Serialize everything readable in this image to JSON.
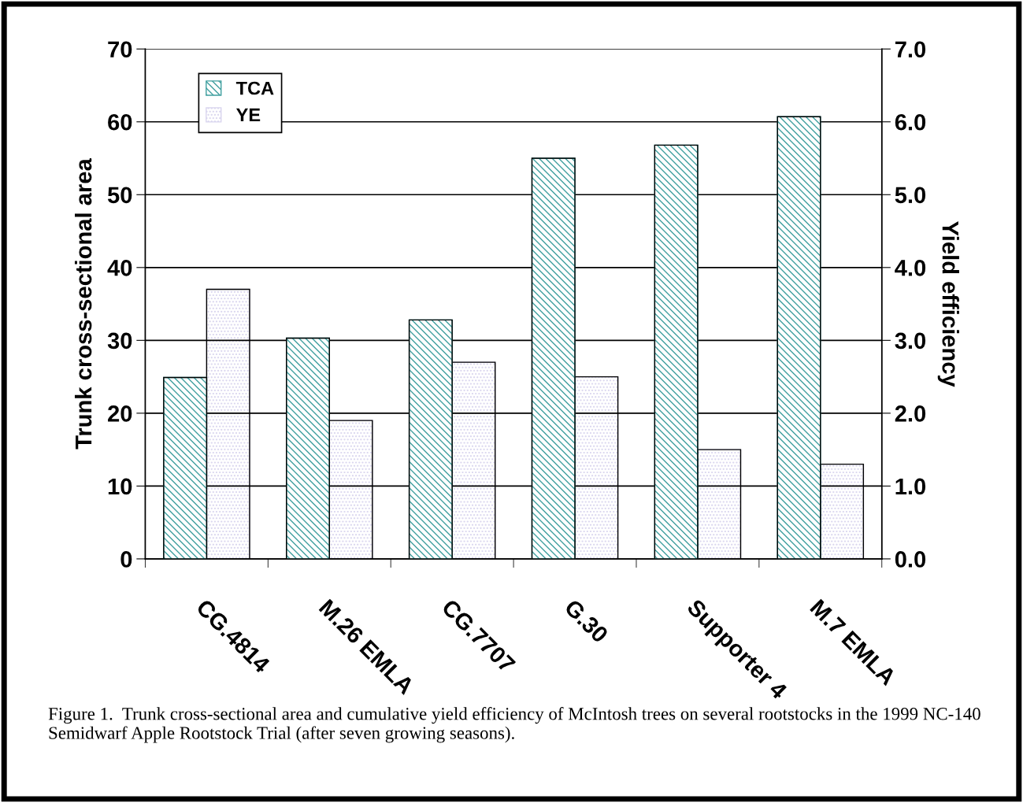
{
  "chart_data": {
    "type": "bar",
    "categories": [
      "CG.4814",
      "M.26 EMLA",
      "CG.7707",
      "G.30",
      "Supporter 4",
      "M.7 EMLA"
    ],
    "series": [
      {
        "name": "TCA",
        "color": "#3f9f9f",
        "values": [
          24.9,
          30.3,
          32.8,
          55.0,
          56.8,
          60.7
        ]
      },
      {
        "name": "YE",
        "color": "#d8d4ee",
        "axis": "y2",
        "values": [
          3.7,
          1.9,
          2.7,
          2.5,
          1.5,
          1.3
        ]
      }
    ],
    "ylabel": "Trunk cross-sectional area",
    "y2label": "Yield efficiency",
    "ylim": [
      0,
      70
    ],
    "yticks": [
      0,
      10,
      20,
      30,
      40,
      50,
      60,
      70
    ],
    "y2lim": [
      0,
      7
    ],
    "y2ticks": [
      {
        "value": 0,
        "label": "0.0"
      },
      {
        "value": 1,
        "label": "1.0"
      },
      {
        "value": 2,
        "label": "2.0"
      },
      {
        "value": 3,
        "label": "3.0"
      },
      {
        "value": 4,
        "label": "4.0"
      },
      {
        "value": 5,
        "label": "5.0"
      },
      {
        "value": 6,
        "label": "6.0"
      },
      {
        "value": 7,
        "label": "7.0"
      }
    ],
    "grid": "y",
    "legend": "top left",
    "annotations": [
      "Figure 1.  Trunk cross-sectional area and cumulative yield efficiency of McIntosh trees on several rootstocks in the 1999 NC-140 Semidwarf Apple Rootstock Trial (after seven growing seasons)."
    ]
  }
}
